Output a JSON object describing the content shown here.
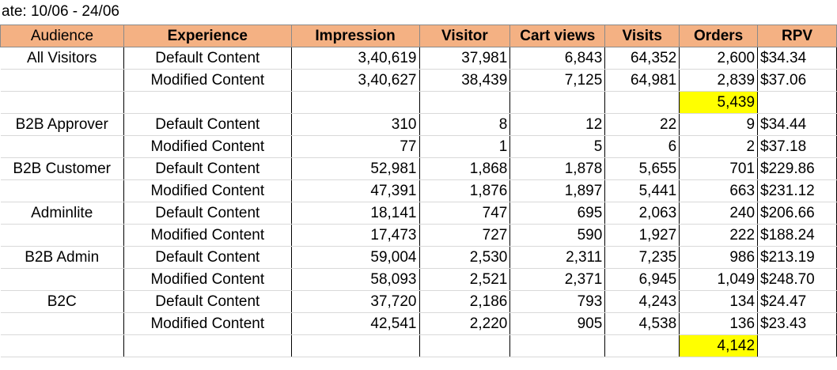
{
  "date_range": "ate: 10/06 - 24/06",
  "headers": [
    "Audience",
    "Experience",
    "Impression",
    "Visitor",
    "Cart views",
    "Visits",
    "Orders",
    "RPV"
  ],
  "rows": [
    {
      "audience": "All Visitors",
      "experience": "Default Content",
      "impression": "3,40,619",
      "visitor": "37,981",
      "cart_views": "6,843",
      "visits": "64,352",
      "orders": "2,600",
      "rpv": "$34.34"
    },
    {
      "audience": "",
      "experience": "Modified Content",
      "impression": "3,40,627",
      "visitor": "38,439",
      "cart_views": "7,125",
      "visits": "64,981",
      "orders": "2,839",
      "rpv": "$37.06"
    },
    {
      "audience": "",
      "experience": "",
      "impression": "",
      "visitor": "",
      "cart_views": "",
      "visits": "",
      "orders": "5,439",
      "rpv": "",
      "highlight": true
    },
    {
      "audience": "B2B Approver",
      "experience": "Default Content",
      "impression": "310",
      "visitor": "8",
      "cart_views": "12",
      "visits": "22",
      "orders": "9",
      "rpv": "$34.44"
    },
    {
      "audience": "",
      "experience": "Modified Content",
      "impression": "77",
      "visitor": "1",
      "cart_views": "5",
      "visits": "6",
      "orders": "2",
      "rpv": "$37.18"
    },
    {
      "audience": "B2B Customer",
      "experience": "Default Content",
      "impression": "52,981",
      "visitor": "1,868",
      "cart_views": "1,878",
      "visits": "5,655",
      "orders": "701",
      "rpv": "$229.86"
    },
    {
      "audience": "",
      "experience": "Modified Content",
      "impression": "47,391",
      "visitor": "1,876",
      "cart_views": "1,897",
      "visits": "5,441",
      "orders": "663",
      "rpv": "$231.12"
    },
    {
      "audience": "Adminlite",
      "experience": "Default Content",
      "impression": "18,141",
      "visitor": "747",
      "cart_views": "695",
      "visits": "2,063",
      "orders": "240",
      "rpv": "$206.66"
    },
    {
      "audience": "",
      "experience": "Modified Content",
      "impression": "17,473",
      "visitor": "727",
      "cart_views": "590",
      "visits": "1,927",
      "orders": "222",
      "rpv": "$188.24"
    },
    {
      "audience": "B2B Admin",
      "experience": "Default Content",
      "impression": "59,004",
      "visitor": "2,530",
      "cart_views": "2,311",
      "visits": "7,235",
      "orders": "986",
      "rpv": "$213.19"
    },
    {
      "audience": "",
      "experience": "Modified Content",
      "impression": "58,093",
      "visitor": "2,521",
      "cart_views": "2,371",
      "visits": "6,945",
      "orders": "1,049",
      "rpv": "$248.70"
    },
    {
      "audience": "B2C",
      "experience": "Default Content",
      "impression": "37,720",
      "visitor": "2,186",
      "cart_views": "793",
      "visits": "4,243",
      "orders": "134",
      "rpv": "$24.47"
    },
    {
      "audience": "",
      "experience": "Modified Content",
      "impression": "42,541",
      "visitor": "2,220",
      "cart_views": "905",
      "visits": "4,538",
      "orders": "136",
      "rpv": "$23.43"
    },
    {
      "audience": "",
      "experience": "",
      "impression": "",
      "visitor": "",
      "cart_views": "",
      "visits": "",
      "orders": "4,142",
      "rpv": "",
      "highlight": true
    }
  ],
  "colors": {
    "header_bg": "#f4b183",
    "highlight": "#ffff00"
  }
}
